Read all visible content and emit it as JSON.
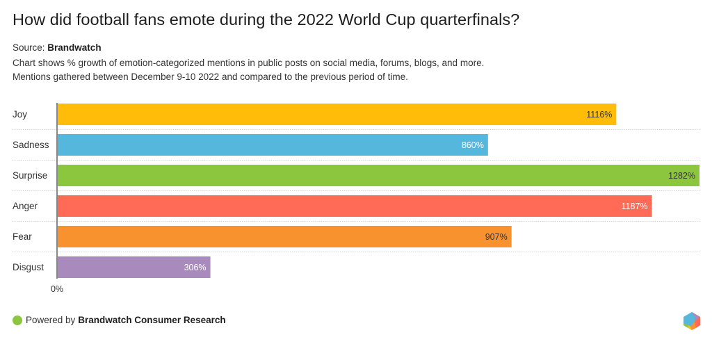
{
  "header": {
    "title": "How did football fans emote during the 2022 World Cup quarterfinals?",
    "source_label": "Source:",
    "source_name": "Brandwatch",
    "description_line1": "Chart shows % growth of emotion-categorized mentions in public posts on social media, forums, blogs, and more.",
    "description_line2": "Mentions gathered between December 9-10 2022 and compared to the previous period of time."
  },
  "footer": {
    "powered_prefix": "Powered by",
    "powered_name": "Brandwatch Consumer Research",
    "dot_color": "#8cc63f",
    "logo_icon": "brandwatch-hexagon-logo-icon"
  },
  "chart_data": {
    "type": "bar",
    "orientation": "horizontal",
    "title": "How did football fans emote during the 2022 World Cup quarterfinals?",
    "xlabel": "",
    "ylabel": "",
    "xlim": [
      0,
      1282
    ],
    "x_tick_labels": [
      "0%"
    ],
    "grid": "dotted row separators",
    "categories": [
      "Joy",
      "Sadness",
      "Surprise",
      "Anger",
      "Fear",
      "Disgust"
    ],
    "values": [
      1116,
      860,
      1282,
      1187,
      907,
      306
    ],
    "value_labels": [
      "1116%",
      "860%",
      "1282%",
      "1187%",
      "907%",
      "306%"
    ],
    "colors": [
      "#ffbd0a",
      "#56b7dd",
      "#8cc63f",
      "#ff6b57",
      "#f7922f",
      "#a88abd"
    ],
    "label_colors": [
      "#333333",
      "#ffffff",
      "#333333",
      "#ffffff",
      "#333333",
      "#ffffff"
    ],
    "unit": "%"
  }
}
